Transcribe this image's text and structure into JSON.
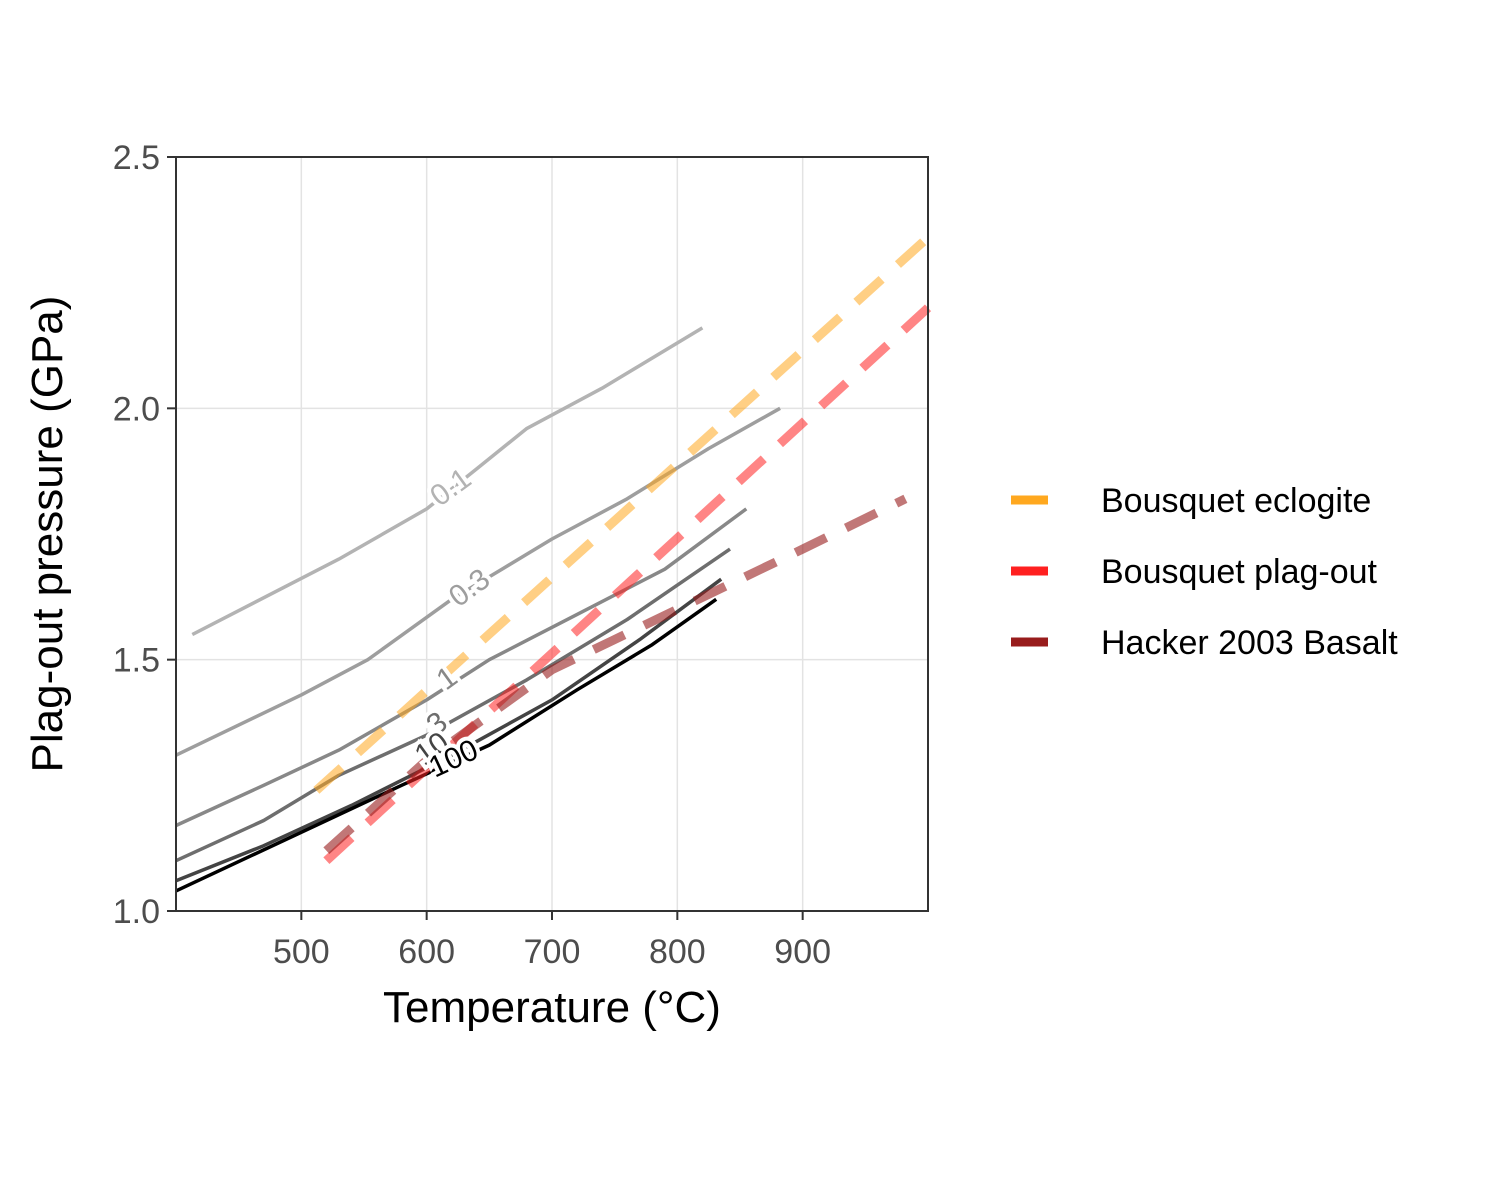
{
  "chart_data": {
    "type": "line",
    "title": "",
    "xlabel": "Temperature (°C)",
    "ylabel": "Plag-out pressure (GPa)",
    "xlim": [
      400,
      1000
    ],
    "ylim": [
      1.0,
      2.5
    ],
    "x_ticks": [
      500,
      600,
      700,
      800,
      900
    ],
    "x_tick_labels": [
      "500",
      "600",
      "700",
      "800",
      "900"
    ],
    "y_ticks": [
      1.0,
      1.5,
      2.0,
      2.5
    ],
    "y_tick_labels": [
      "1.0",
      "1.5",
      "2.0",
      "2.5"
    ],
    "grid": true,
    "legend_position": "right",
    "contours": [
      {
        "label": "0.1",
        "color": "#b3b3b3",
        "points": [
          [
            413,
            1.55
          ],
          [
            530,
            1.7
          ],
          [
            600,
            1.8
          ],
          [
            640,
            1.88
          ],
          [
            680,
            1.96
          ],
          [
            740,
            2.04
          ],
          [
            820,
            2.16
          ]
        ],
        "label_at": [
          620,
          1.84
        ],
        "label_angle": -36
      },
      {
        "label": "0.3",
        "color": "#9e9e9e",
        "points": [
          [
            400,
            1.31
          ],
          [
            500,
            1.43
          ],
          [
            553,
            1.5
          ],
          [
            620,
            1.62
          ],
          [
            660,
            1.68
          ],
          [
            700,
            1.74
          ],
          [
            760,
            1.82
          ],
          [
            825,
            1.92
          ],
          [
            882,
            2.0
          ]
        ],
        "label_at": [
          635,
          1.64
        ],
        "label_angle": -36
      },
      {
        "label": "1",
        "color": "#888888",
        "points": [
          [
            400,
            1.17
          ],
          [
            470,
            1.25
          ],
          [
            530,
            1.32
          ],
          [
            600,
            1.42
          ],
          [
            650,
            1.5
          ],
          [
            720,
            1.59
          ],
          [
            790,
            1.68
          ],
          [
            855,
            1.8
          ]
        ],
        "label_at": [
          617,
          1.46
        ],
        "label_angle": -36
      },
      {
        "label": "3",
        "color": "#6e6e6e",
        "points": [
          [
            400,
            1.1
          ],
          [
            470,
            1.18
          ],
          [
            530,
            1.27
          ],
          [
            600,
            1.35
          ],
          [
            680,
            1.46
          ],
          [
            760,
            1.58
          ],
          [
            842,
            1.72
          ]
        ],
        "label_at": [
          609,
          1.37
        ],
        "label_angle": -36
      },
      {
        "label": "10",
        "color": "#444444",
        "points": [
          [
            400,
            1.06
          ],
          [
            470,
            1.13
          ],
          [
            540,
            1.21
          ],
          [
            620,
            1.31
          ],
          [
            700,
            1.42
          ],
          [
            770,
            1.54
          ],
          [
            835,
            1.66
          ]
        ],
        "label_at": [
          605,
          1.32
        ],
        "label_angle": -36
      },
      {
        "label": "100",
        "color": "#000000",
        "points": [
          [
            400,
            1.04
          ],
          [
            460,
            1.11
          ],
          [
            520,
            1.18
          ],
          [
            580,
            1.25
          ],
          [
            650,
            1.33
          ],
          [
            720,
            1.44
          ],
          [
            780,
            1.53
          ],
          [
            831,
            1.62
          ]
        ],
        "label_at": [
          622,
          1.3
        ],
        "label_angle": -25
      }
    ],
    "series": [
      {
        "name": "Bousquet eclogite",
        "color": "#ffa81f",
        "opacity": 0.55,
        "x": [
          512,
          1000
        ],
        "y": [
          1.24,
          2.34
        ]
      },
      {
        "name": "Bousquet plag-out",
        "color": "#ff2020",
        "opacity": 0.55,
        "x": [
          520,
          1000
        ],
        "y": [
          1.1,
          2.2
        ]
      },
      {
        "name": "Hacker 2003 Basalt",
        "color": "#981c1c",
        "opacity": 0.6,
        "x": [
          520,
          600,
          700,
          800,
          900,
          982
        ],
        "y": [
          1.12,
          1.3,
          1.48,
          1.6,
          1.72,
          1.82
        ]
      }
    ]
  }
}
